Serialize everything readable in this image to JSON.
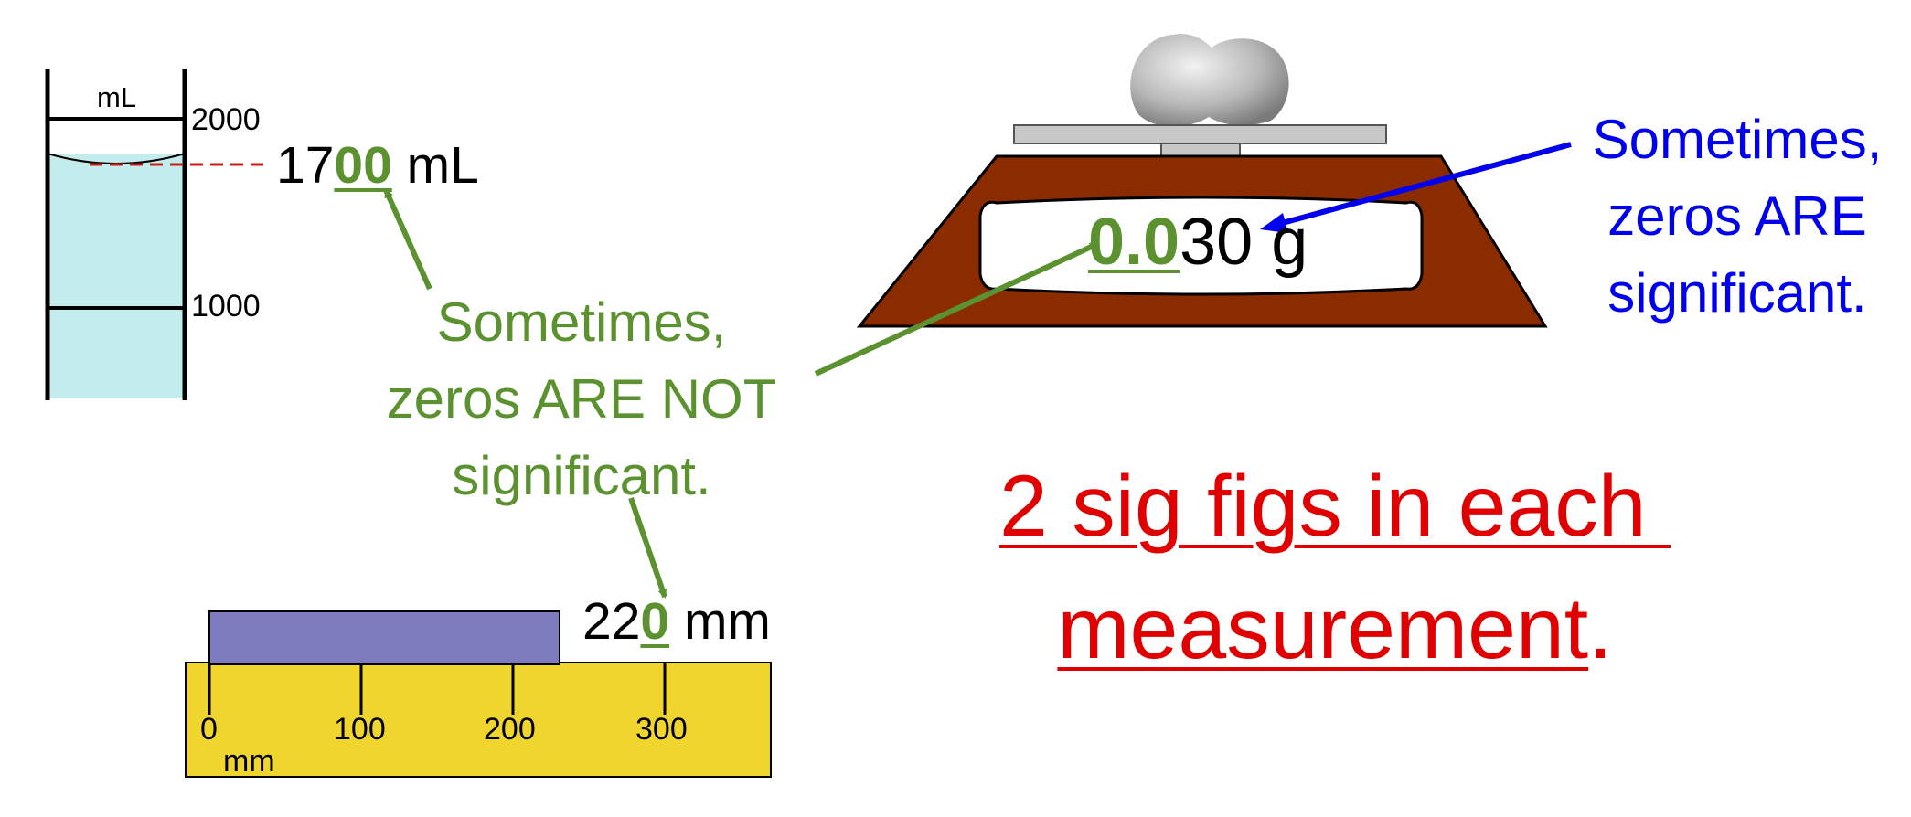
{
  "colors": {
    "green": "#5b922f",
    "blue": "#0000ee",
    "red": "#e00000",
    "cylinder_liquid": "#c3ecec",
    "scale_body": "#8b2b00",
    "ruler": "#f1d52f",
    "block": "#7e7cbf"
  },
  "cylinder": {
    "unit": "mL",
    "mark_top": "2000",
    "mark_mid": "1000",
    "reading": {
      "part1": "17",
      "part2": "00",
      "unit": " mL"
    }
  },
  "ruler": {
    "ticks": [
      "0",
      "100",
      "200",
      "300"
    ],
    "unit": "mm",
    "reading": {
      "part1": "22",
      "part2": "0",
      "unit": " mm"
    }
  },
  "scale": {
    "reading": {
      "part1": "0.0",
      "part2": "30",
      "unit": " g"
    }
  },
  "notes": {
    "not_significant": [
      "Sometimes,",
      "zeros ARE NOT",
      "significant."
    ],
    "significant": [
      "Sometimes,",
      "zeros ARE",
      "significant."
    ]
  },
  "headline": {
    "line1": "2 sig figs in each ",
    "line2": "measurement",
    "tail": "."
  }
}
